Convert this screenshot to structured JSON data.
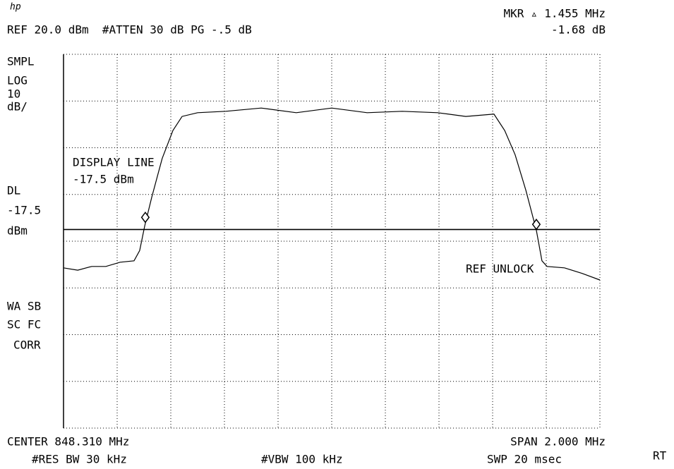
{
  "chart_data": {
    "type": "line",
    "logo": "hp",
    "annotations": [
      "MKR ▵ 1.455 MHz",
      "REF 20.0 dBm  #ATTEN 30 dB PG -.5 dB",
      "-1.68 dB",
      "SMPL",
      "LOG",
      "10",
      "dB/",
      "DL",
      "-17.5",
      "dBm",
      "WA SB",
      "SC FC",
      "CORR",
      "DISPLAY LINE",
      "-17.5 dBm",
      "REF UNLOCK",
      "CENTER 848.310 MHz",
      "SPAN 2.000 MHz",
      "#RES BW 30 kHz",
      "#VBW 100 kHz",
      "SWP 20 msec",
      "RT"
    ],
    "x": [
      847.31,
      847.363,
      847.415,
      847.468,
      847.521,
      847.573,
      847.594,
      847.613,
      847.639,
      847.678,
      847.718,
      847.752,
      847.81,
      847.915,
      848.047,
      848.178,
      848.31,
      848.442,
      848.573,
      848.705,
      848.81,
      848.915,
      848.955,
      848.994,
      849.034,
      849.073,
      849.094,
      849.113,
      849.178,
      849.244,
      849.31
    ],
    "series": [
      {
        "color": "#000000",
        "values": [
          -25.7,
          -26.2,
          -25.4,
          -25.4,
          -24.5,
          -24.2,
          -22.0,
          -16.7,
          -10.6,
          -2.3,
          3.7,
          6.7,
          7.5,
          7.8,
          8.5,
          7.5,
          8.5,
          7.5,
          7.8,
          7.5,
          6.7,
          7.2,
          3.7,
          -1.5,
          -9.1,
          -17.6,
          -24.2,
          -25.4,
          -25.7,
          -26.9,
          -28.3
        ]
      }
    ],
    "display_line": -17.5,
    "markers": [
      {
        "x": 847.615,
        "y": -14.9
      },
      {
        "x": 849.073,
        "y": -16.4
      }
    ],
    "xlim": [
      847.31,
      849.31
    ],
    "ylim": [
      -60,
      20
    ],
    "xticks": [
      847.31,
      847.51,
      847.71,
      847.91,
      848.11,
      848.31,
      848.51,
      848.71,
      848.91,
      849.11,
      849.31
    ],
    "yticks": [
      20,
      10,
      0,
      -10,
      -20,
      -30,
      -40,
      -50,
      -60
    ],
    "grid": true
  }
}
